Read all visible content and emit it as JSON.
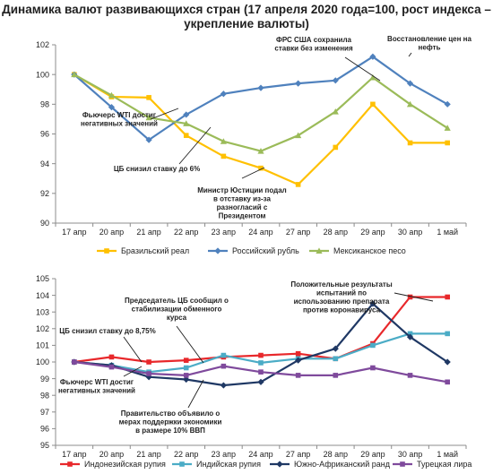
{
  "title": "Динамика валют развивающихся стран (17 апреля  2020 года=100, рост индекса – укрепление валюты)",
  "chart_data": [
    {
      "type": "line",
      "categories": [
        "17 апр",
        "20 апр",
        "21 апр",
        "22 апр",
        "23 апр",
        "24 апр",
        "27 апр",
        "28 апр",
        "29 апр",
        "30 апр",
        "1 май"
      ],
      "ylim": [
        90,
        102
      ],
      "yticks": [
        90,
        92,
        94,
        96,
        98,
        100,
        102
      ],
      "grid": false,
      "legend_position": "bottom",
      "series": [
        {
          "name": "Бразильский реал",
          "color": "#ffc000",
          "marker": "square",
          "values": [
            100.0,
            98.5,
            98.45,
            95.9,
            94.5,
            93.7,
            92.6,
            95.1,
            98.0,
            95.4,
            95.4
          ]
        },
        {
          "name": "Российский рубль",
          "color": "#4f81bd",
          "marker": "diamond",
          "values": [
            100.0,
            97.8,
            95.6,
            97.3,
            98.7,
            99.1,
            99.4,
            99.6,
            101.2,
            99.4,
            98.0
          ]
        },
        {
          "name": "Мексиканское песо",
          "color": "#9bbb59",
          "marker": "triangle",
          "values": [
            100.0,
            98.6,
            97.1,
            96.7,
            95.5,
            94.85,
            95.9,
            97.5,
            99.8,
            98.0,
            96.4
          ]
        }
      ],
      "annotations": [
        {
          "lines": [
            "Фьючерс WTI достиг",
            "негативных значений"
          ]
        },
        {
          "lines": [
            "ЦБ снизил ставку до 6%"
          ]
        },
        {
          "lines": [
            "Министр Юстиции подал",
            "в отставку из-за",
            "разногласий с",
            "Президентом"
          ]
        },
        {
          "lines": [
            "ФРС США сохранила",
            "ставки без изменения"
          ]
        },
        {
          "lines": [
            "Восстановление цен на",
            "нефть"
          ]
        }
      ]
    },
    {
      "type": "line",
      "categories": [
        "17 апр",
        "20 апр",
        "21 апр",
        "22 апр",
        "23 апр",
        "24 апр",
        "27 апр",
        "28 апр",
        "29 апр",
        "30 апр",
        "1 май"
      ],
      "ylim": [
        95,
        105
      ],
      "yticks": [
        95,
        96,
        97,
        98,
        99,
        100,
        101,
        102,
        103,
        104,
        105
      ],
      "grid": false,
      "legend_position": "bottom",
      "series": [
        {
          "name": "Индонезийская рупия",
          "color": "#e8282b",
          "marker": "square",
          "values": [
            100.0,
            100.3,
            100.0,
            100.1,
            100.3,
            100.4,
            100.5,
            100.2,
            101.1,
            103.9,
            103.9
          ]
        },
        {
          "name": "Индийская рупия",
          "color": "#4bacc6",
          "marker": "square",
          "values": [
            100.0,
            99.8,
            99.4,
            99.65,
            100.4,
            99.95,
            100.2,
            100.2,
            101.0,
            101.7,
            101.7
          ]
        },
        {
          "name": "Южно-Африканский ранд",
          "color": "#1f3864",
          "marker": "diamond",
          "values": [
            100.0,
            99.8,
            99.1,
            98.95,
            98.6,
            98.8,
            100.1,
            100.8,
            103.5,
            101.5,
            100.0
          ]
        },
        {
          "name": "Турецкая лира",
          "color": "#7f4a9c",
          "marker": "square",
          "values": [
            100.0,
            99.7,
            99.3,
            99.2,
            99.75,
            99.4,
            99.2,
            99.2,
            99.65,
            99.2,
            98.8
          ]
        }
      ],
      "annotations": [
        {
          "lines": [
            "Председатель ЦБ сообщил о",
            "стабилизации обменного",
            "курса"
          ]
        },
        {
          "lines": [
            "ЦБ снизил ставку до 8,75%"
          ]
        },
        {
          "lines": [
            "Фьючерс WTI достиг",
            "негативных значений"
          ]
        },
        {
          "lines": [
            "Правительство объявило о",
            "мерах поддержки экономики",
            "в размере 10% ВВП"
          ]
        },
        {
          "lines": [
            "Положительные результаты",
            "испытаний по",
            "использованию препарата",
            "против коронавируса"
          ]
        }
      ]
    }
  ]
}
